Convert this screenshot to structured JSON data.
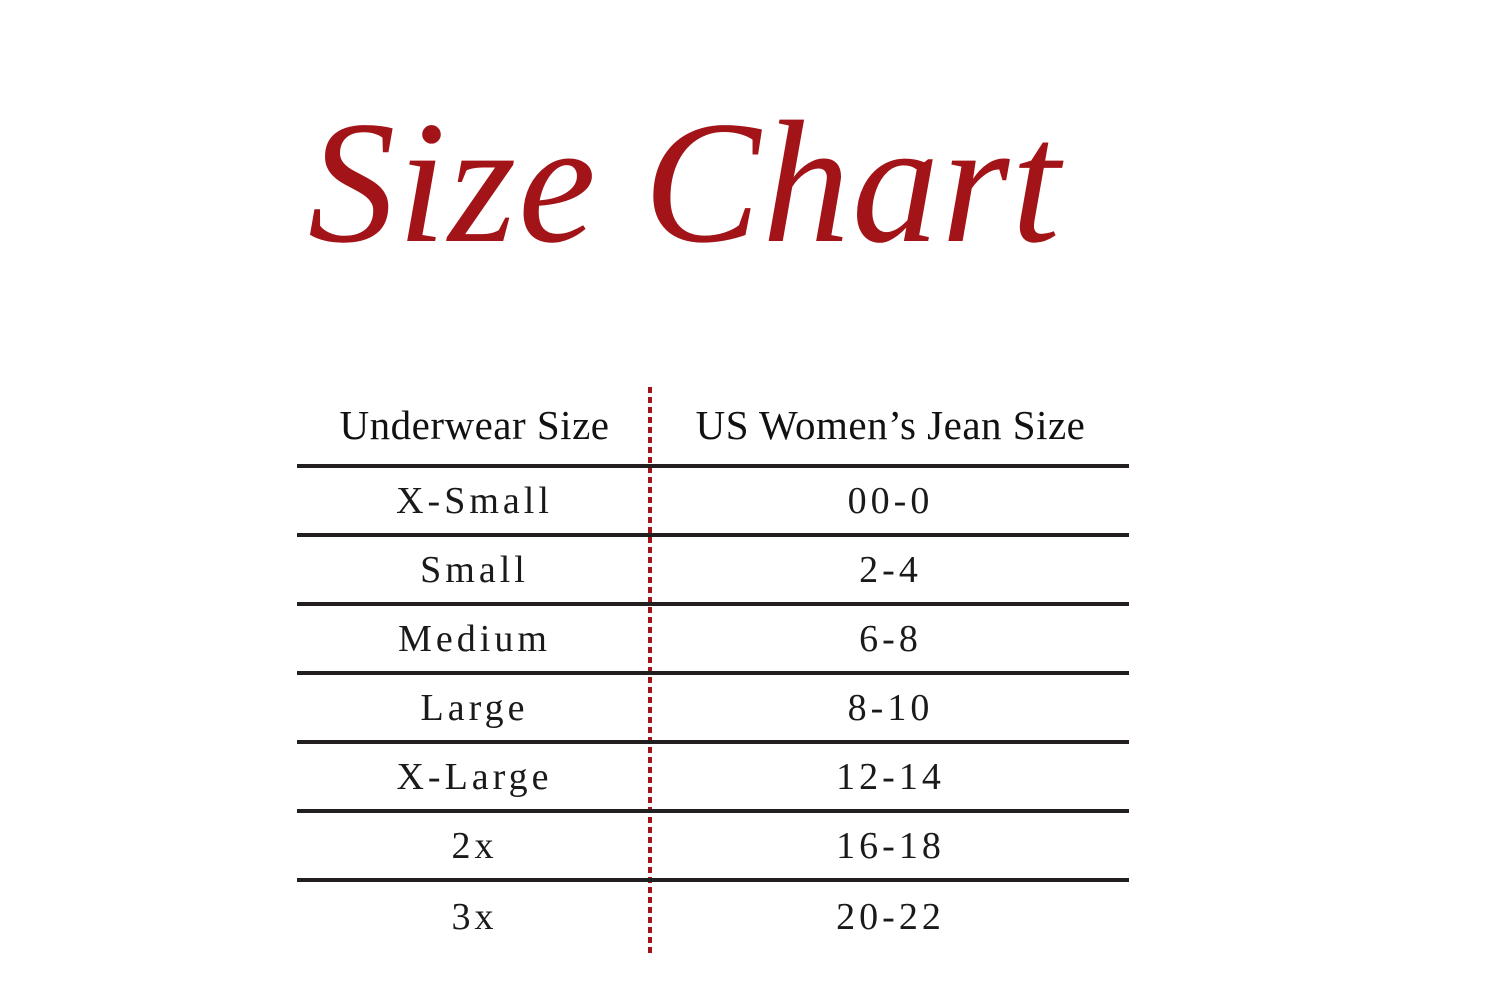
{
  "title": {
    "text": "Size Chart"
  },
  "colors": {
    "accent_red": "#a21418",
    "line_dark": "#231f20",
    "text_dark": "#151515",
    "page_bg": "#ffffff"
  },
  "chart_data": {
    "type": "table",
    "title": "Size Chart",
    "columns": [
      "Underwear Size",
      "US Women’s Jean Size"
    ],
    "rows": [
      [
        "X-Small",
        "00-0"
      ],
      [
        "Small",
        "2-4"
      ],
      [
        "Medium",
        "6-8"
      ],
      [
        "Large",
        "8-10"
      ],
      [
        "X-Large",
        "12-14"
      ],
      [
        "2x",
        "16-18"
      ],
      [
        "3x",
        "20-22"
      ]
    ],
    "layout": {
      "column_divider": "red dotted vertical line",
      "row_separators": "solid dark horizontal lines, none under last row",
      "grid": "horizontal rules only"
    }
  }
}
